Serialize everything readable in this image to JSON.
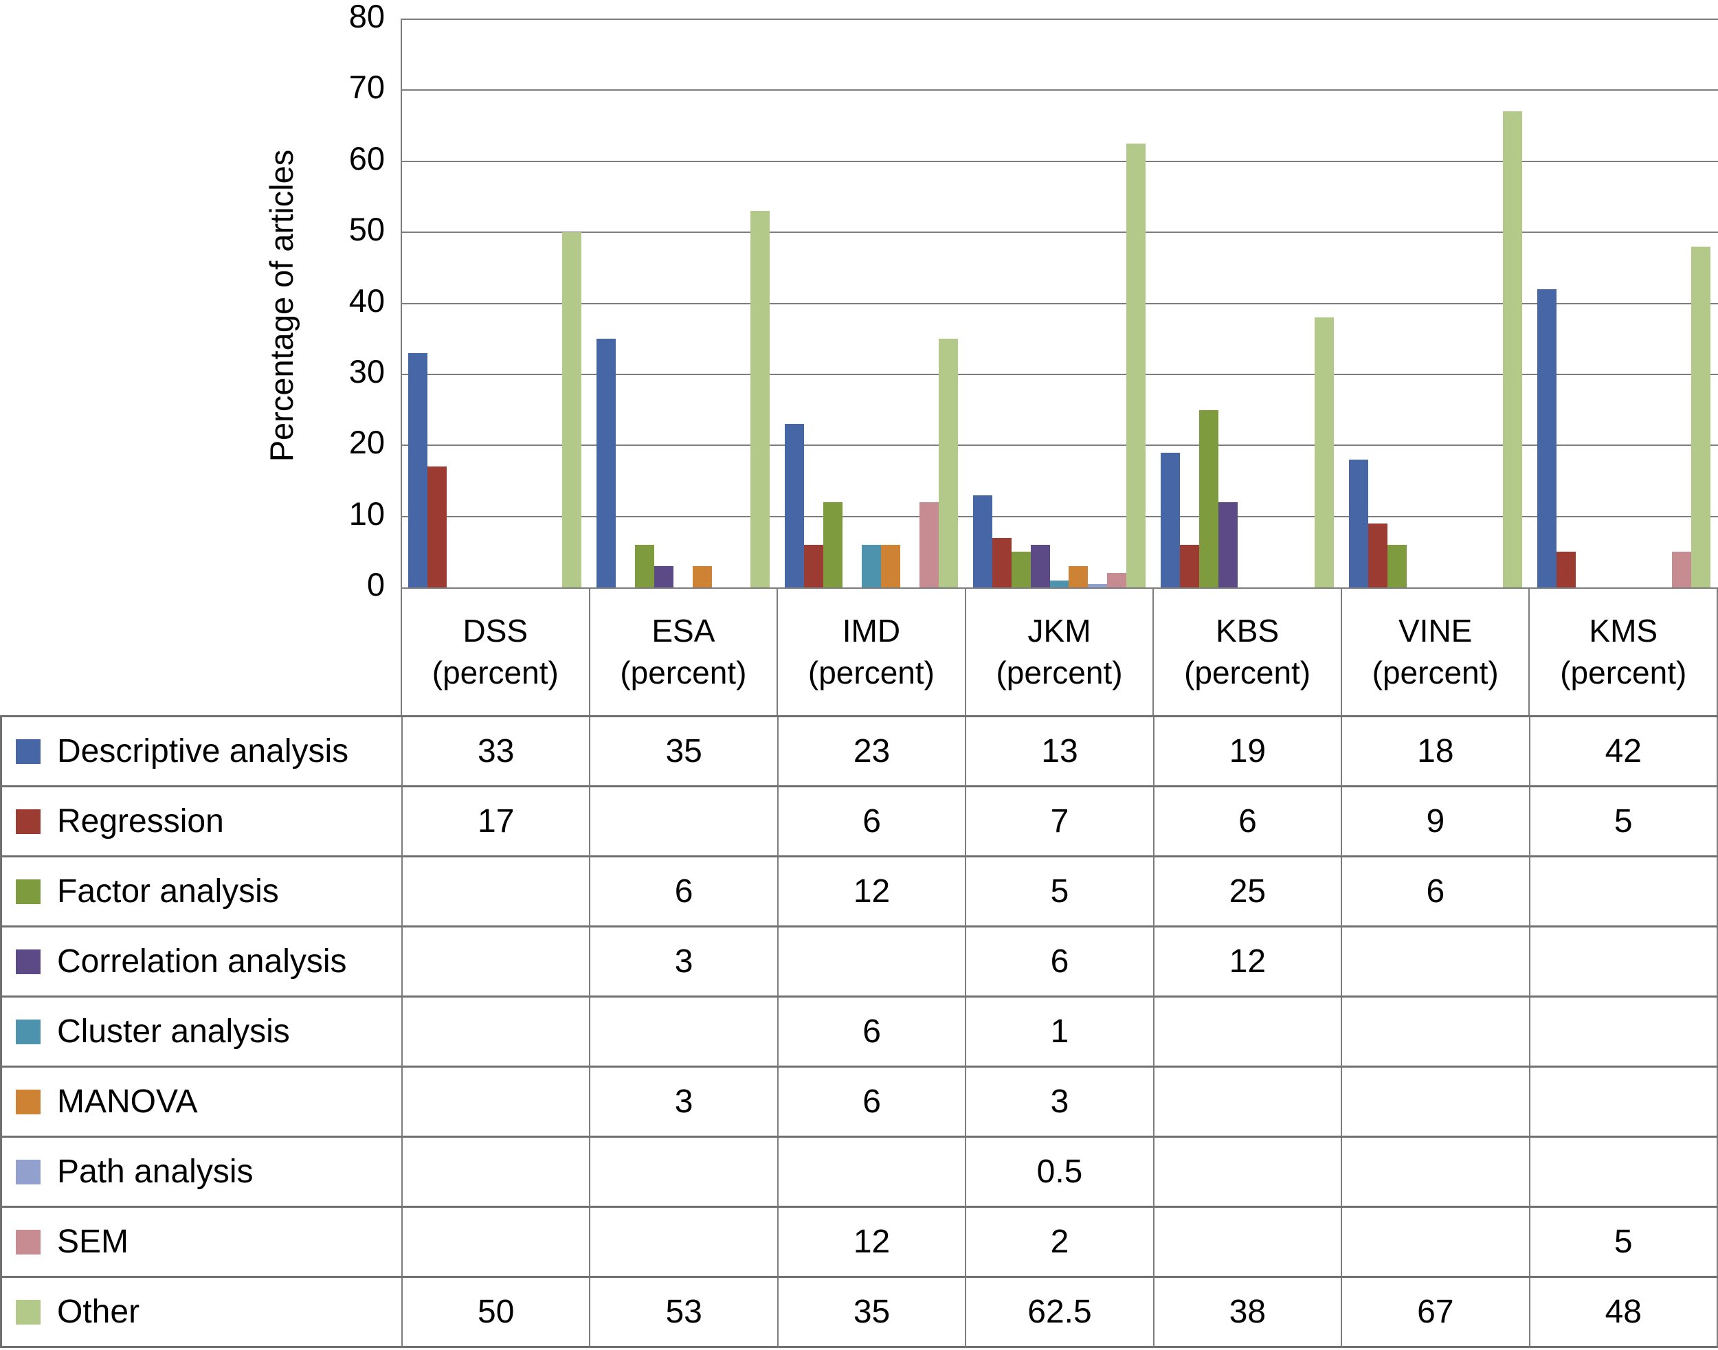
{
  "y_axis": {
    "label": "Percentage of articles",
    "tick_labels": [
      "80",
      "70",
      "60",
      "50",
      "40",
      "30",
      "20",
      "10",
      "0"
    ]
  },
  "table": {
    "category_sublabel": "(percent)"
  },
  "chart_data": {
    "type": "bar",
    "title": "",
    "xlabel": "",
    "ylabel": "Percentage of articles",
    "ylim": [
      0,
      80
    ],
    "ytick_step": 10,
    "grid": true,
    "legend_position": "table-left-column",
    "categories": [
      "DSS",
      "ESA",
      "IMD",
      "JKM",
      "KBS",
      "VINE",
      "KMS"
    ],
    "category_sublabel": "(percent)",
    "series": [
      {
        "name": "Descriptive analysis",
        "color": "#4766a6",
        "values": [
          33,
          35,
          23,
          13,
          19,
          18,
          42
        ]
      },
      {
        "name": "Regression",
        "color": "#9c3b32",
        "values": [
          17,
          null,
          6,
          7,
          6,
          9,
          5
        ]
      },
      {
        "name": "Factor analysis",
        "color": "#7e9b3d",
        "values": [
          null,
          6,
          12,
          5,
          25,
          6,
          null
        ]
      },
      {
        "name": "Correlation analysis",
        "color": "#5c4a87",
        "values": [
          null,
          3,
          null,
          6,
          12,
          null,
          null
        ]
      },
      {
        "name": "Cluster analysis",
        "color": "#4e93ae",
        "values": [
          null,
          null,
          6,
          1,
          null,
          null,
          null
        ]
      },
      {
        "name": "MANOVA",
        "color": "#ce8334",
        "values": [
          null,
          3,
          6,
          3,
          null,
          null,
          null
        ]
      },
      {
        "name": "Path analysis",
        "color": "#92a0cd",
        "values": [
          null,
          null,
          null,
          0.5,
          null,
          null,
          null
        ]
      },
      {
        "name": "SEM",
        "color": "#c68c92",
        "values": [
          null,
          null,
          12,
          2,
          null,
          null,
          5
        ]
      },
      {
        "name": "Other",
        "color": "#b3c98a",
        "values": [
          50,
          53,
          35,
          62.5,
          38,
          67,
          48
        ]
      }
    ]
  }
}
